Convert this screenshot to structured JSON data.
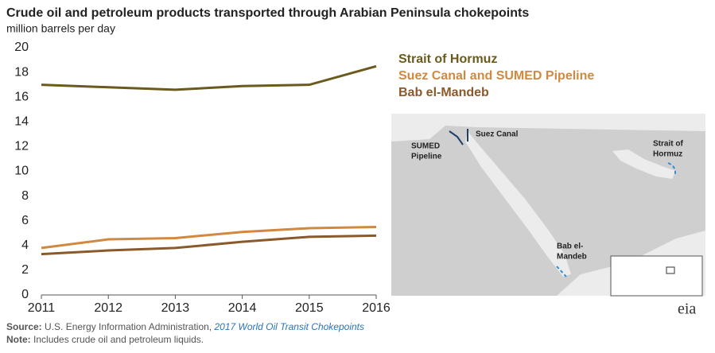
{
  "chart_data": {
    "type": "line",
    "title": "Crude oil and petroleum products transported through Arabian Peninsula chokepoints",
    "subtitle": "million barrels per day",
    "x": [
      2011,
      2012,
      2013,
      2014,
      2015,
      2016
    ],
    "xlim": [
      2011,
      2016
    ],
    "xticks": [
      2011,
      2012,
      2013,
      2014,
      2015,
      2016
    ],
    "ylim": [
      0,
      20
    ],
    "yticks": [
      0,
      2,
      4,
      6,
      8,
      10,
      12,
      14,
      16,
      18,
      20
    ],
    "grid": false,
    "series": [
      {
        "name": "Strait of Hormuz",
        "color": "#6b5a1e",
        "values": [
          17.0,
          16.8,
          16.6,
          16.9,
          17.0,
          18.5
        ]
      },
      {
        "name": "Suez Canal and SUMED Pipeline",
        "color": "#d0893f",
        "values": [
          3.8,
          4.5,
          4.6,
          5.1,
          5.4,
          5.5
        ]
      },
      {
        "name": "Bab el-Mandeb",
        "color": "#8b5a2b",
        "values": [
          3.3,
          3.6,
          3.8,
          4.3,
          4.7,
          4.8
        ]
      }
    ]
  },
  "map_labels": {
    "suez": [
      "Suez Canal"
    ],
    "sumed": [
      "SUMED",
      "Pipeline"
    ],
    "hormuz": [
      "Strait of",
      "Hormuz"
    ],
    "bab": [
      "Bab el-",
      "Mandeb"
    ]
  },
  "logo": "eia",
  "source": {
    "label": "Source:",
    "text": "U.S. Energy Information Administration,",
    "link": "2017 World Oil Transit Chokepoints"
  },
  "note": {
    "label": "Note:",
    "text": "Includes crude oil and petroleum liquids."
  }
}
